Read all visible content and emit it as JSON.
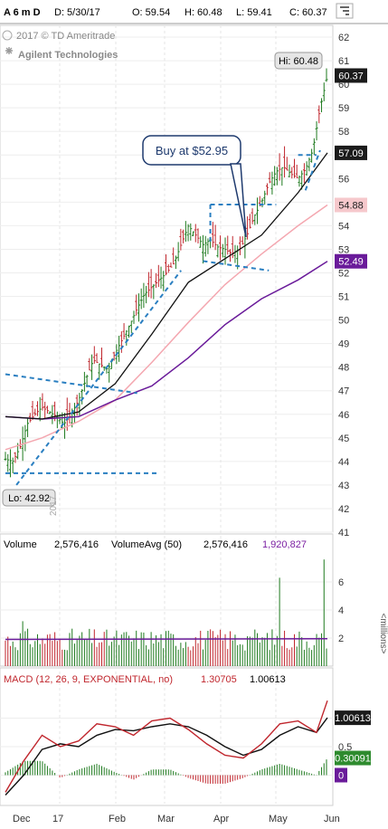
{
  "header": {
    "symbol": "A 6 m D",
    "date": "D: 5/30/17",
    "open": "O: 59.54",
    "high": "H: 60.48",
    "low": "L: 59.41",
    "close": "C: 60.37"
  },
  "watermark": {
    "copyright": "2017 © TD Ameritrade",
    "company": "Agilent Technologies"
  },
  "annotations": {
    "buy_callout": "Buy at $52.95",
    "hi_label": "Hi: 60.48",
    "lo_label": "Lo: 42.92",
    "year_label": "2017"
  },
  "price_panel": {
    "y_ticks": [
      "62",
      "61",
      "60",
      "59",
      "58",
      "57",
      "56",
      "55",
      "54",
      "53",
      "52",
      "51",
      "50",
      "49",
      "48",
      "47",
      "46",
      "45",
      "44",
      "43",
      "42",
      "41"
    ],
    "last_price_tags": [
      {
        "text": "60.37",
        "value": 60.37,
        "bg": "#1b1b1b",
        "fg": "#ffffff"
      },
      {
        "text": "57.09",
        "value": 57.09,
        "bg": "#1b1b1b",
        "fg": "#ffffff"
      },
      {
        "text": "54.88",
        "value": 54.88,
        "bg": "#f6c8cc",
        "fg": "#222222"
      },
      {
        "text": "52.49",
        "value": 52.49,
        "bg": "#6a1b9a",
        "fg": "#ffffff"
      }
    ]
  },
  "volume_panel": {
    "label": "Volume",
    "value": "2,576,416",
    "avg_label": "VolumeAvg (50)",
    "avg_value": "2,576,416",
    "avg_value2": "1,920,827",
    "y_ticks": [
      "6",
      "4",
      "2"
    ],
    "units": "<millions>"
  },
  "macd_panel": {
    "label": "MACD (12, 26, 9, EXPONENTIAL, no)",
    "value1": "1.30705",
    "value2": "1.00613",
    "y_ticks": [
      "1",
      "0.5",
      "0"
    ],
    "tags": [
      {
        "text": "1.00613",
        "bg": "#1b1b1b",
        "fg": "#ffffff"
      },
      {
        "text": "0.30091",
        "bg": "#2e8b2e",
        "fg": "#ffffff"
      },
      {
        "text": "0",
        "bg": "#6a1b9a",
        "fg": "#ffffff"
      }
    ]
  },
  "x_axis": {
    "labels": [
      "Dec",
      "17",
      "Feb",
      "Mar",
      "Apr",
      "May",
      "Jun"
    ]
  },
  "colors": {
    "up": "#1e7a1e",
    "down": "#c0262d",
    "ma_fast": "#111111",
    "ma_mid": "#f4a7b0",
    "ma_slow": "#6a1b9a",
    "trend": "#2a7fc1",
    "macd": "#c0262d",
    "signal": "#111111"
  },
  "chart_data": {
    "type": "candlestick",
    "title": "Agilent Technologies",
    "ylim": [
      41,
      62.5
    ],
    "price_path": [
      [
        0,
        44.1
      ],
      [
        4,
        44.0
      ],
      [
        8,
        44.6
      ],
      [
        12,
        45.6
      ],
      [
        16,
        46.0
      ],
      [
        20,
        46.3
      ],
      [
        24,
        46.1
      ],
      [
        28,
        45.9
      ],
      [
        32,
        45.6
      ],
      [
        36,
        46.0
      ],
      [
        40,
        46.6
      ],
      [
        44,
        47.5
      ],
      [
        48,
        48.3
      ],
      [
        52,
        48.1
      ],
      [
        56,
        47.9
      ],
      [
        60,
        48.6
      ],
      [
        64,
        49.2
      ],
      [
        68,
        49.8
      ],
      [
        72,
        50.5
      ],
      [
        76,
        51.1
      ],
      [
        80,
        51.4
      ],
      [
        84,
        51.7
      ],
      [
        88,
        52.0
      ],
      [
        92,
        52.4
      ],
      [
        96,
        53.2
      ],
      [
        100,
        54.0
      ],
      [
        104,
        53.6
      ],
      [
        108,
        53.2
      ],
      [
        112,
        53.4
      ],
      [
        116,
        53.1
      ],
      [
        120,
        53.0
      ],
      [
        124,
        52.8
      ],
      [
        128,
        53.0
      ],
      [
        132,
        53.6
      ],
      [
        136,
        54.4
      ],
      [
        140,
        55.0
      ],
      [
        144,
        55.8
      ],
      [
        148,
        56.3
      ],
      [
        152,
        56.5
      ],
      [
        156,
        56.2
      ],
      [
        160,
        56.0
      ],
      [
        164,
        56.4
      ],
      [
        168,
        57.2
      ],
      [
        172,
        59.0
      ],
      [
        176,
        60.37
      ]
    ],
    "volume_spikes": [
      [
        10,
        3.2
      ],
      [
        56,
        2.6
      ],
      [
        134,
        2.1
      ],
      [
        150,
        6.3
      ],
      [
        174,
        7.6
      ]
    ],
    "volume_range": [
      0,
      8
    ],
    "macd_range": [
      -0.5,
      1.5
    ],
    "ma_fast_path": [
      [
        0,
        45.9
      ],
      [
        20,
        45.8
      ],
      [
        40,
        46.1
      ],
      [
        60,
        47.3
      ],
      [
        80,
        49.4
      ],
      [
        100,
        51.6
      ],
      [
        120,
        52.6
      ],
      [
        140,
        53.6
      ],
      [
        160,
        55.4
      ],
      [
        176,
        57.09
      ]
    ],
    "ma_mid_path": [
      [
        0,
        44.5
      ],
      [
        20,
        45.0
      ],
      [
        40,
        45.7
      ],
      [
        60,
        46.6
      ],
      [
        80,
        48.2
      ],
      [
        100,
        49.9
      ],
      [
        120,
        51.5
      ],
      [
        140,
        52.8
      ],
      [
        160,
        54.0
      ],
      [
        176,
        54.88
      ]
    ],
    "ma_slow_path": [
      [
        0,
        45.9
      ],
      [
        20,
        45.8
      ],
      [
        40,
        45.9
      ],
      [
        60,
        46.6
      ],
      [
        80,
        47.2
      ],
      [
        100,
        48.4
      ],
      [
        120,
        49.8
      ],
      [
        140,
        50.9
      ],
      [
        160,
        51.7
      ],
      [
        176,
        52.49
      ]
    ],
    "macd_path": [
      [
        0,
        -0.3
      ],
      [
        10,
        0.25
      ],
      [
        20,
        0.7
      ],
      [
        30,
        0.5
      ],
      [
        40,
        0.6
      ],
      [
        50,
        0.9
      ],
      [
        60,
        0.85
      ],
      [
        70,
        0.7
      ],
      [
        80,
        0.95
      ],
      [
        90,
        1.0
      ],
      [
        100,
        0.8
      ],
      [
        110,
        0.55
      ],
      [
        120,
        0.35
      ],
      [
        130,
        0.3
      ],
      [
        140,
        0.55
      ],
      [
        150,
        0.9
      ],
      [
        160,
        0.95
      ],
      [
        170,
        0.75
      ],
      [
        176,
        1.30705
      ]
    ],
    "signal_path": [
      [
        0,
        -0.35
      ],
      [
        10,
        0.0
      ],
      [
        20,
        0.45
      ],
      [
        30,
        0.55
      ],
      [
        40,
        0.5
      ],
      [
        50,
        0.7
      ],
      [
        60,
        0.8
      ],
      [
        70,
        0.78
      ],
      [
        80,
        0.85
      ],
      [
        90,
        0.9
      ],
      [
        100,
        0.85
      ],
      [
        110,
        0.7
      ],
      [
        120,
        0.5
      ],
      [
        130,
        0.35
      ],
      [
        140,
        0.45
      ],
      [
        150,
        0.7
      ],
      [
        160,
        0.85
      ],
      [
        170,
        0.75
      ],
      [
        176,
        1.00613
      ]
    ]
  }
}
